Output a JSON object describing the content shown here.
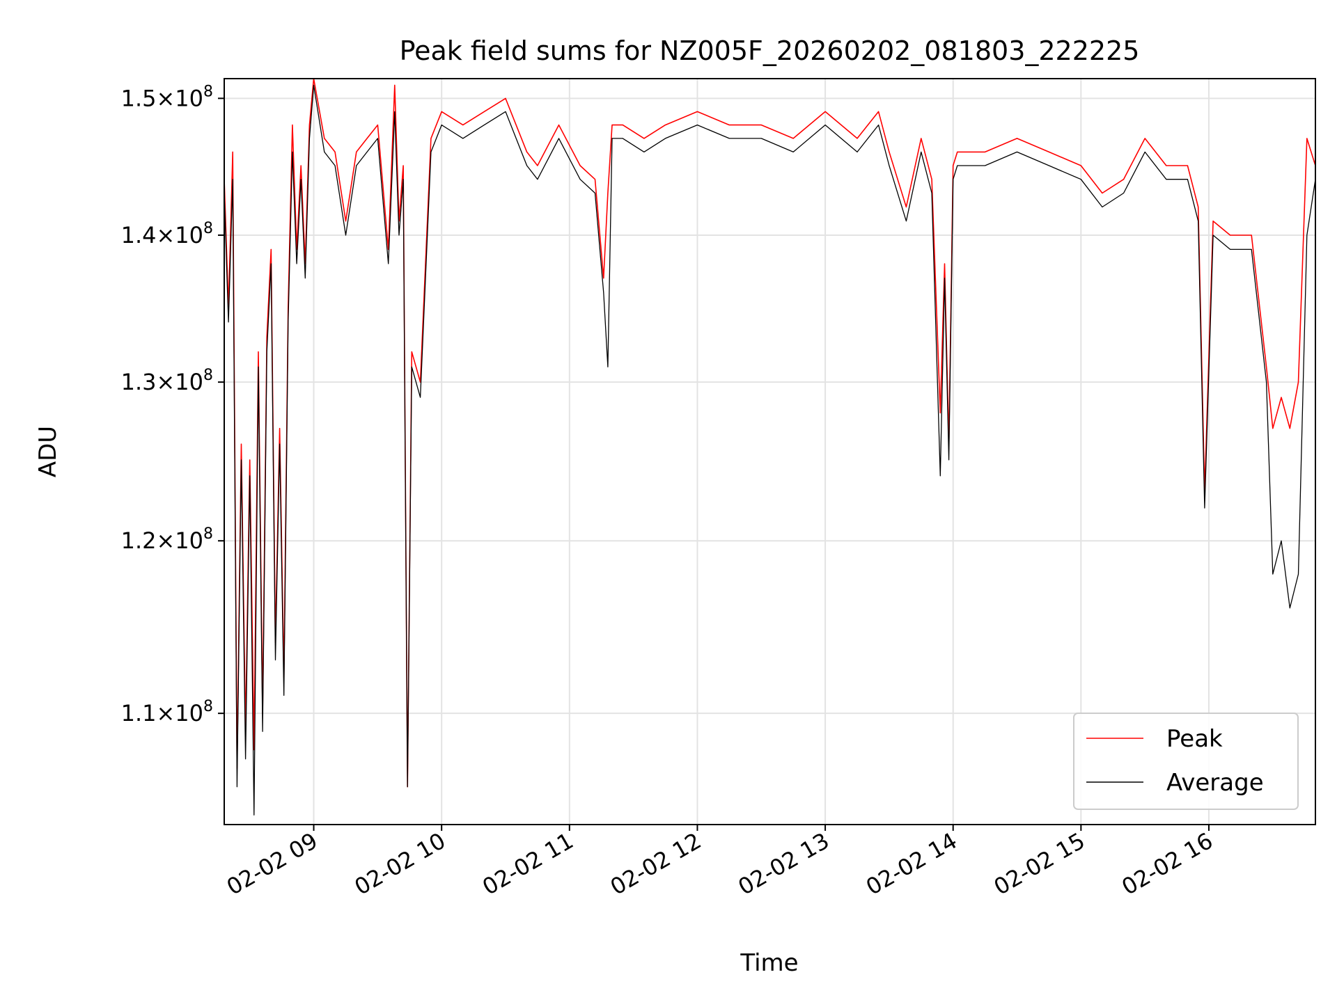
{
  "chart_data": {
    "type": "line",
    "title": "Peak field sums for NZ005F_20260202_081803_222225",
    "xlabel": "Time",
    "ylabel": "ADU",
    "x_range": [
      "2026-02-02 08:18",
      "2026-02-02 16:50"
    ],
    "y_scale": "log",
    "ylim": [
      104000000,
      151500000
    ],
    "grid": true,
    "legend_position": "lower-right",
    "x_ticks": [
      {
        "time": "2026-02-02 09:00",
        "label": "02-02 09"
      },
      {
        "time": "2026-02-02 10:00",
        "label": "02-02 10"
      },
      {
        "time": "2026-02-02 11:00",
        "label": "02-02 11"
      },
      {
        "time": "2026-02-02 12:00",
        "label": "02-02 12"
      },
      {
        "time": "2026-02-02 13:00",
        "label": "02-02 13"
      },
      {
        "time": "2026-02-02 14:00",
        "label": "02-02 14"
      },
      {
        "time": "2026-02-02 15:00",
        "label": "02-02 15"
      },
      {
        "time": "2026-02-02 16:00",
        "label": "02-02 16"
      }
    ],
    "y_ticks": [
      {
        "value": 110000000,
        "mantissa": "1.1",
        "base": "10",
        "exp": "8"
      },
      {
        "value": 120000000,
        "mantissa": "1.2",
        "base": "10",
        "exp": "8"
      },
      {
        "value": 130000000,
        "mantissa": "1.3",
        "base": "10",
        "exp": "8"
      },
      {
        "value": 140000000,
        "mantissa": "1.4",
        "base": "10",
        "exp": "8"
      },
      {
        "value": 150000000,
        "mantissa": "1.5",
        "base": "10",
        "exp": "8"
      }
    ],
    "series": [
      {
        "name": "Peak",
        "color": "#ff0000",
        "x": [
          "2026-02-02 08:18",
          "2026-02-02 08:20",
          "2026-02-02 08:22",
          "2026-02-02 08:24",
          "2026-02-02 08:26",
          "2026-02-02 08:28",
          "2026-02-02 08:30",
          "2026-02-02 08:32",
          "2026-02-02 08:34",
          "2026-02-02 08:36",
          "2026-02-02 08:38",
          "2026-02-02 08:40",
          "2026-02-02 08:42",
          "2026-02-02 08:44",
          "2026-02-02 08:46",
          "2026-02-02 08:48",
          "2026-02-02 08:50",
          "2026-02-02 08:52",
          "2026-02-02 08:54",
          "2026-02-02 08:56",
          "2026-02-02 08:58",
          "2026-02-02 09:00",
          "2026-02-02 09:05",
          "2026-02-02 09:10",
          "2026-02-02 09:15",
          "2026-02-02 09:20",
          "2026-02-02 09:25",
          "2026-02-02 09:30",
          "2026-02-02 09:35",
          "2026-02-02 09:38",
          "2026-02-02 09:40",
          "2026-02-02 09:42",
          "2026-02-02 09:44",
          "2026-02-02 09:46",
          "2026-02-02 09:50",
          "2026-02-02 09:55",
          "2026-02-02 10:00",
          "2026-02-02 10:10",
          "2026-02-02 10:20",
          "2026-02-02 10:30",
          "2026-02-02 10:40",
          "2026-02-02 10:45",
          "2026-02-02 10:55",
          "2026-02-02 11:05",
          "2026-02-02 11:12",
          "2026-02-02 11:16",
          "2026-02-02 11:18",
          "2026-02-02 11:20",
          "2026-02-02 11:25",
          "2026-02-02 11:35",
          "2026-02-02 11:45",
          "2026-02-02 12:00",
          "2026-02-02 12:15",
          "2026-02-02 12:30",
          "2026-02-02 12:45",
          "2026-02-02 13:00",
          "2026-02-02 13:15",
          "2026-02-02 13:25",
          "2026-02-02 13:30",
          "2026-02-02 13:38",
          "2026-02-02 13:45",
          "2026-02-02 13:50",
          "2026-02-02 13:54",
          "2026-02-02 13:56",
          "2026-02-02 13:58",
          "2026-02-02 14:00",
          "2026-02-02 14:02",
          "2026-02-02 14:05",
          "2026-02-02 14:15",
          "2026-02-02 14:30",
          "2026-02-02 14:45",
          "2026-02-02 15:00",
          "2026-02-02 15:10",
          "2026-02-02 15:20",
          "2026-02-02 15:30",
          "2026-02-02 15:40",
          "2026-02-02 15:50",
          "2026-02-02 15:55",
          "2026-02-02 15:58",
          "2026-02-02 16:02",
          "2026-02-02 16:10",
          "2026-02-02 16:20",
          "2026-02-02 16:27",
          "2026-02-02 16:30",
          "2026-02-02 16:34",
          "2026-02-02 16:38",
          "2026-02-02 16:42",
          "2026-02-02 16:46",
          "2026-02-02 16:50"
        ],
        "y": [
          144000000,
          135000000,
          146000000,
          107000000,
          126000000,
          109000000,
          125000000,
          108000000,
          132000000,
          110000000,
          133000000,
          139000000,
          114000000,
          127000000,
          112000000,
          135000000,
          148000000,
          139000000,
          145000000,
          138000000,
          148000000,
          152000000,
          147000000,
          146000000,
          141000000,
          146000000,
          147000000,
          148000000,
          139000000,
          151000000,
          141000000,
          145000000,
          106000000,
          132000000,
          130000000,
          147000000,
          149000000,
          148000000,
          149000000,
          150000000,
          146000000,
          145000000,
          148000000,
          145000000,
          144000000,
          137000000,
          143000000,
          148000000,
          148000000,
          147000000,
          148000000,
          149000000,
          148000000,
          148000000,
          147000000,
          149000000,
          147000000,
          149000000,
          146000000,
          142000000,
          147000000,
          144000000,
          128000000,
          138000000,
          126000000,
          145000000,
          146000000,
          146000000,
          146000000,
          147000000,
          146000000,
          145000000,
          143000000,
          144000000,
          147000000,
          145000000,
          145000000,
          142000000,
          123000000,
          141000000,
          140000000,
          140000000,
          131000000,
          127000000,
          129000000,
          127000000,
          130000000,
          147000000,
          145000000
        ]
      },
      {
        "name": "Average",
        "color": "#000000",
        "x": [
          "2026-02-02 08:18",
          "2026-02-02 08:20",
          "2026-02-02 08:22",
          "2026-02-02 08:24",
          "2026-02-02 08:26",
          "2026-02-02 08:28",
          "2026-02-02 08:30",
          "2026-02-02 08:32",
          "2026-02-02 08:34",
          "2026-02-02 08:36",
          "2026-02-02 08:38",
          "2026-02-02 08:40",
          "2026-02-02 08:42",
          "2026-02-02 08:44",
          "2026-02-02 08:46",
          "2026-02-02 08:48",
          "2026-02-02 08:50",
          "2026-02-02 08:52",
          "2026-02-02 08:54",
          "2026-02-02 08:56",
          "2026-02-02 08:58",
          "2026-02-02 09:00",
          "2026-02-02 09:05",
          "2026-02-02 09:10",
          "2026-02-02 09:15",
          "2026-02-02 09:20",
          "2026-02-02 09:25",
          "2026-02-02 09:30",
          "2026-02-02 09:35",
          "2026-02-02 09:38",
          "2026-02-02 09:40",
          "2026-02-02 09:42",
          "2026-02-02 09:44",
          "2026-02-02 09:46",
          "2026-02-02 09:50",
          "2026-02-02 09:55",
          "2026-02-02 10:00",
          "2026-02-02 10:10",
          "2026-02-02 10:20",
          "2026-02-02 10:30",
          "2026-02-02 10:40",
          "2026-02-02 10:45",
          "2026-02-02 10:55",
          "2026-02-02 11:05",
          "2026-02-02 11:12",
          "2026-02-02 11:16",
          "2026-02-02 11:18",
          "2026-02-02 11:20",
          "2026-02-02 11:25",
          "2026-02-02 11:35",
          "2026-02-02 11:45",
          "2026-02-02 12:00",
          "2026-02-02 12:15",
          "2026-02-02 12:30",
          "2026-02-02 12:45",
          "2026-02-02 13:00",
          "2026-02-02 13:15",
          "2026-02-02 13:25",
          "2026-02-02 13:30",
          "2026-02-02 13:38",
          "2026-02-02 13:45",
          "2026-02-02 13:50",
          "2026-02-02 13:54",
          "2026-02-02 13:56",
          "2026-02-02 13:58",
          "2026-02-02 14:00",
          "2026-02-02 14:02",
          "2026-02-02 14:05",
          "2026-02-02 14:15",
          "2026-02-02 14:30",
          "2026-02-02 14:45",
          "2026-02-02 15:00",
          "2026-02-02 15:10",
          "2026-02-02 15:20",
          "2026-02-02 15:30",
          "2026-02-02 15:40",
          "2026-02-02 15:50",
          "2026-02-02 15:55",
          "2026-02-02 15:58",
          "2026-02-02 16:02",
          "2026-02-02 16:10",
          "2026-02-02 16:20",
          "2026-02-02 16:27",
          "2026-02-02 16:30",
          "2026-02-02 16:34",
          "2026-02-02 16:38",
          "2026-02-02 16:42",
          "2026-02-02 16:46",
          "2026-02-02 16:50"
        ],
        "y": [
          143000000,
          134000000,
          144000000,
          106000000,
          125000000,
          107500000,
          124000000,
          104500000,
          131000000,
          109000000,
          132000000,
          138000000,
          113000000,
          126000000,
          111000000,
          134000000,
          146000000,
          138000000,
          144000000,
          137000000,
          147000000,
          151000000,
          146000000,
          145000000,
          140000000,
          145000000,
          146000000,
          147000000,
          138000000,
          149000000,
          140000000,
          144000000,
          106000000,
          131000000,
          129000000,
          146000000,
          148000000,
          147000000,
          148000000,
          149000000,
          145000000,
          144000000,
          147000000,
          144000000,
          143000000,
          136000000,
          131000000,
          147000000,
          147000000,
          146000000,
          147000000,
          148000000,
          147000000,
          147000000,
          146000000,
          148000000,
          146000000,
          148000000,
          145000000,
          141000000,
          146000000,
          143000000,
          124000000,
          137000000,
          125000000,
          144000000,
          145000000,
          145000000,
          145000000,
          146000000,
          145000000,
          144000000,
          142000000,
          143000000,
          146000000,
          144000000,
          144000000,
          141000000,
          122000000,
          140000000,
          139000000,
          139000000,
          130000000,
          118000000,
          120000000,
          116000000,
          118000000,
          140000000,
          144000000
        ]
      }
    ]
  }
}
